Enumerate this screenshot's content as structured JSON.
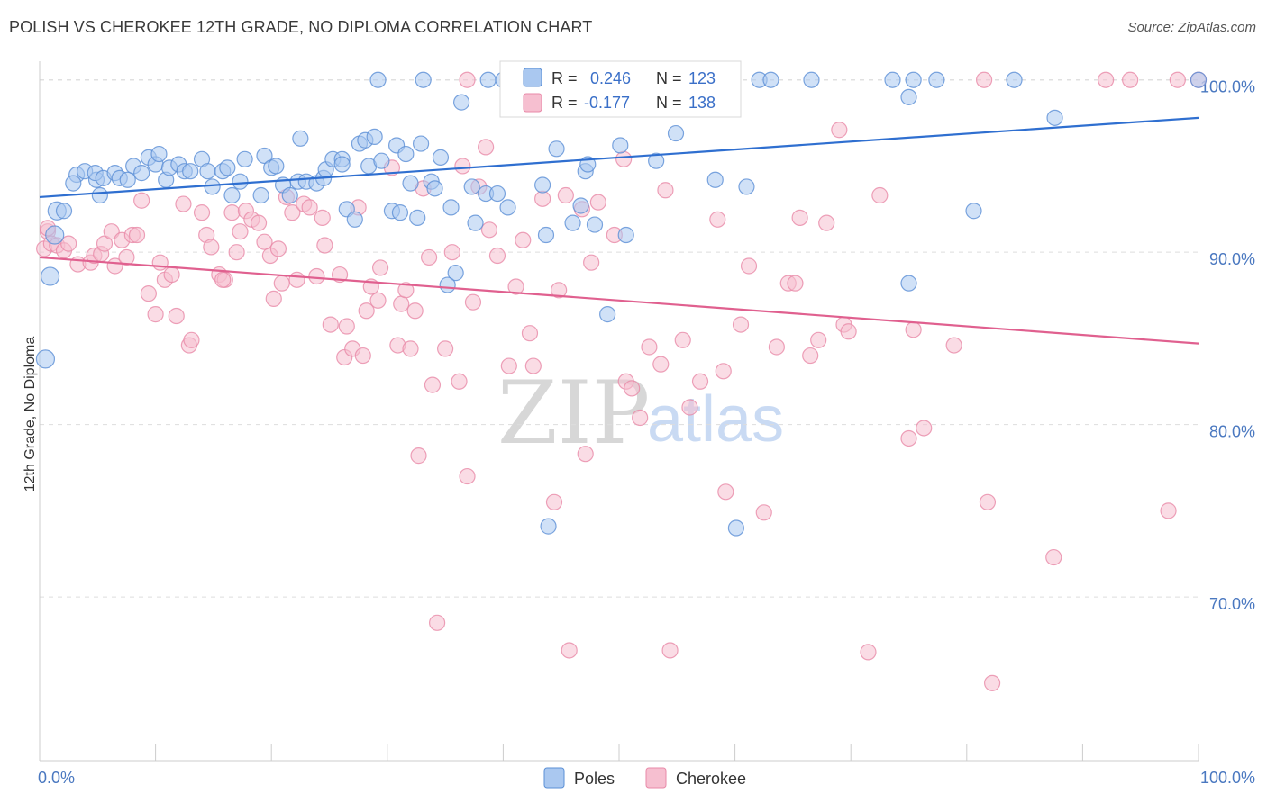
{
  "title": "POLISH VS CHEROKEE 12TH GRADE, NO DIPLOMA CORRELATION CHART",
  "source": "Source: ZipAtlas.com",
  "watermark": {
    "zip": "ZIP",
    "atlas": "atlas"
  },
  "colors": {
    "poles_fill": "#aac8f0",
    "poles_stroke": "#5b8fd6",
    "poles_line": "#2f6fd0",
    "cherokee_fill": "#f6bfd0",
    "cherokee_stroke": "#e889a8",
    "cherokee_line": "#e0608f",
    "tick_label": "#4a78c0",
    "grid": "#dddddd"
  },
  "legend_box": {
    "rows": [
      {
        "r_label": "R = ",
        "r_value": "0.246",
        "n_label": "N = ",
        "n_value": "123",
        "series": "poles"
      },
      {
        "r_label": "R = ",
        "r_value": "-0.177",
        "n_label": "N = ",
        "n_value": "138",
        "series": "cherokee"
      }
    ]
  },
  "chart_data": {
    "type": "scatter",
    "title": "POLISH VS CHEROKEE 12TH GRADE, NO DIPLOMA CORRELATION CHART",
    "xlabel": "",
    "ylabel": "12th Grade, No Diploma",
    "xlim": [
      0,
      100
    ],
    "ylim": [
      60.5,
      101.5
    ],
    "x_tick_labels": [
      "0.0%",
      "100.0%"
    ],
    "y_ticks": [
      70,
      80,
      90,
      100
    ],
    "y_tick_labels": [
      "70.0%",
      "80.0%",
      "90.0%",
      "100.0%"
    ],
    "grid": "horizontal dashed",
    "legend_position": "bottom-center",
    "series": [
      {
        "name": "Poles",
        "r": 0.246,
        "n": 123,
        "trend": {
          "x": [
            0,
            100
          ],
          "y": [
            93.2,
            97.8
          ]
        },
        "points": [
          [
            0.9,
            88.6
          ],
          [
            0.5,
            83.8
          ],
          [
            1.5,
            92.4
          ],
          [
            2.1,
            92.4
          ],
          [
            1.3,
            91.0
          ],
          [
            3.2,
            94.5
          ],
          [
            2.9,
            94.0
          ],
          [
            3.9,
            94.7
          ],
          [
            4.9,
            94.2
          ],
          [
            4.8,
            94.6
          ],
          [
            5.2,
            93.3
          ],
          [
            5.5,
            94.3
          ],
          [
            6.5,
            94.6
          ],
          [
            6.9,
            94.3
          ],
          [
            7.6,
            94.2
          ],
          [
            8.1,
            95.0
          ],
          [
            8.8,
            94.6
          ],
          [
            9.4,
            95.5
          ],
          [
            10.0,
            95.1
          ],
          [
            10.3,
            95.7
          ],
          [
            10.9,
            94.2
          ],
          [
            11.2,
            94.9
          ],
          [
            12.0,
            95.1
          ],
          [
            12.5,
            94.7
          ],
          [
            13.0,
            94.7
          ],
          [
            14.0,
            95.4
          ],
          [
            14.5,
            94.7
          ],
          [
            14.9,
            93.8
          ],
          [
            15.8,
            94.7
          ],
          [
            16.2,
            94.9
          ],
          [
            16.6,
            93.3
          ],
          [
            17.3,
            94.1
          ],
          [
            17.7,
            95.4
          ],
          [
            19.1,
            93.3
          ],
          [
            19.4,
            95.6
          ],
          [
            20.0,
            94.9
          ],
          [
            20.4,
            95.0
          ],
          [
            21.0,
            93.9
          ],
          [
            21.6,
            93.3
          ],
          [
            22.3,
            94.1
          ],
          [
            23.0,
            94.1
          ],
          [
            22.5,
            96.6
          ],
          [
            23.9,
            94.0
          ],
          [
            24.5,
            94.3
          ],
          [
            24.7,
            94.8
          ],
          [
            25.3,
            95.4
          ],
          [
            26.1,
            95.4
          ],
          [
            26.5,
            92.5
          ],
          [
            26.1,
            95.1
          ],
          [
            27.2,
            91.9
          ],
          [
            27.6,
            96.3
          ],
          [
            28.1,
            96.5
          ],
          [
            28.9,
            96.7
          ],
          [
            28.4,
            95.0
          ],
          [
            29.5,
            95.3
          ],
          [
            30.4,
            92.4
          ],
          [
            31.1,
            92.3
          ],
          [
            30.8,
            96.2
          ],
          [
            32.0,
            94.0
          ],
          [
            31.6,
            95.7
          ],
          [
            32.6,
            92.0
          ],
          [
            32.9,
            96.3
          ],
          [
            33.8,
            94.1
          ],
          [
            34.1,
            93.7
          ],
          [
            34.6,
            95.5
          ],
          [
            35.5,
            92.6
          ],
          [
            35.9,
            88.8
          ],
          [
            35.2,
            88.1
          ],
          [
            36.4,
            98.7
          ],
          [
            37.3,
            93.8
          ],
          [
            37.6,
            91.7
          ],
          [
            38.5,
            93.4
          ],
          [
            39.5,
            93.4
          ],
          [
            40.4,
            92.6
          ],
          [
            38.7,
            100.0
          ],
          [
            41.0,
            100.0
          ],
          [
            42.0,
            100.0
          ],
          [
            43.4,
            93.9
          ],
          [
            43.7,
            91.0
          ],
          [
            43.9,
            74.1
          ],
          [
            44.6,
            96.0
          ],
          [
            45.7,
            100.0
          ],
          [
            46.0,
            91.7
          ],
          [
            46.7,
            92.7
          ],
          [
            47.1,
            94.7
          ],
          [
            47.3,
            95.1
          ],
          [
            47.9,
            91.6
          ],
          [
            49.0,
            86.4
          ],
          [
            50.1,
            96.2
          ],
          [
            50.6,
            91.0
          ],
          [
            50.9,
            100.0
          ],
          [
            52.1,
            100.0
          ],
          [
            53.2,
            95.3
          ],
          [
            54.0,
            100.0
          ],
          [
            54.9,
            96.9
          ],
          [
            56.0,
            100.0
          ],
          [
            57.5,
            100.0
          ],
          [
            58.3,
            94.2
          ],
          [
            60.1,
            74.0
          ],
          [
            61.0,
            93.8
          ],
          [
            62.1,
            100.0
          ],
          [
            63.1,
            100.0
          ],
          [
            66.6,
            100.0
          ],
          [
            73.6,
            100.0
          ],
          [
            75.0,
            99.0
          ],
          [
            75.4,
            100.0
          ],
          [
            77.4,
            100.0
          ],
          [
            75.0,
            88.2
          ],
          [
            80.6,
            92.4
          ],
          [
            84.1,
            100.0
          ],
          [
            87.6,
            97.8
          ],
          [
            100.0,
            100.0
          ],
          [
            40.0,
            100.0
          ],
          [
            48.4,
            100.0
          ],
          [
            33.1,
            100.0
          ],
          [
            42.9,
            100.0
          ],
          [
            29.2,
            100.0
          ]
        ]
      },
      {
        "name": "Cherokee",
        "r": -0.177,
        "n": 138,
        "trend": {
          "x": [
            0,
            100
          ],
          "y": [
            89.7,
            84.7
          ]
        },
        "points": [
          [
            0.4,
            90.2
          ],
          [
            0.7,
            91.2
          ],
          [
            0.7,
            91.4
          ],
          [
            1.0,
            90.5
          ],
          [
            1.5,
            90.4
          ],
          [
            2.1,
            90.1
          ],
          [
            2.5,
            90.5
          ],
          [
            3.3,
            89.3
          ],
          [
            4.4,
            89.4
          ],
          [
            4.7,
            89.8
          ],
          [
            5.3,
            89.9
          ],
          [
            5.6,
            90.5
          ],
          [
            6.2,
            91.2
          ],
          [
            6.5,
            89.2
          ],
          [
            7.1,
            90.7
          ],
          [
            7.5,
            89.7
          ],
          [
            8.0,
            91.0
          ],
          [
            8.4,
            91.0
          ],
          [
            8.8,
            93.0
          ],
          [
            9.4,
            87.6
          ],
          [
            10.0,
            86.4
          ],
          [
            10.4,
            89.4
          ],
          [
            10.8,
            88.4
          ],
          [
            11.4,
            88.7
          ],
          [
            11.8,
            86.3
          ],
          [
            12.4,
            92.8
          ],
          [
            12.9,
            84.6
          ],
          [
            13.1,
            84.9
          ],
          [
            14.0,
            92.3
          ],
          [
            14.4,
            91.0
          ],
          [
            14.8,
            90.3
          ],
          [
            15.5,
            88.7
          ],
          [
            16.0,
            88.4
          ],
          [
            16.6,
            92.3
          ],
          [
            17.0,
            90.0
          ],
          [
            17.3,
            91.2
          ],
          [
            17.8,
            92.4
          ],
          [
            18.3,
            91.9
          ],
          [
            18.9,
            91.7
          ],
          [
            19.4,
            90.6
          ],
          [
            19.9,
            89.8
          ],
          [
            20.2,
            87.3
          ],
          [
            20.6,
            90.2
          ],
          [
            21.3,
            93.2
          ],
          [
            21.8,
            92.3
          ],
          [
            22.2,
            88.4
          ],
          [
            22.8,
            92.8
          ],
          [
            23.3,
            92.6
          ],
          [
            23.9,
            88.6
          ],
          [
            24.4,
            92.0
          ],
          [
            24.6,
            90.4
          ],
          [
            25.1,
            85.8
          ],
          [
            25.9,
            88.7
          ],
          [
            26.5,
            85.7
          ],
          [
            26.3,
            83.9
          ],
          [
            27.0,
            84.4
          ],
          [
            27.5,
            92.6
          ],
          [
            27.9,
            84.0
          ],
          [
            28.2,
            86.6
          ],
          [
            28.6,
            88.0
          ],
          [
            29.2,
            87.2
          ],
          [
            29.4,
            89.1
          ],
          [
            30.4,
            94.9
          ],
          [
            30.9,
            84.6
          ],
          [
            31.2,
            87.0
          ],
          [
            31.6,
            87.8
          ],
          [
            32.0,
            84.4
          ],
          [
            32.4,
            86.6
          ],
          [
            32.7,
            78.2
          ],
          [
            33.1,
            93.7
          ],
          [
            33.6,
            89.7
          ],
          [
            33.9,
            82.3
          ],
          [
            34.3,
            68.5
          ],
          [
            35.0,
            84.4
          ],
          [
            35.6,
            90.0
          ],
          [
            36.2,
            82.5
          ],
          [
            36.5,
            95.0
          ],
          [
            36.9,
            77.0
          ],
          [
            37.4,
            87.1
          ],
          [
            37.9,
            93.8
          ],
          [
            38.5,
            96.1
          ],
          [
            38.8,
            91.3
          ],
          [
            39.5,
            89.8
          ],
          [
            40.5,
            83.4
          ],
          [
            41.1,
            88.0
          ],
          [
            41.7,
            90.7
          ],
          [
            42.3,
            85.3
          ],
          [
            42.6,
            83.4
          ],
          [
            43.4,
            93.1
          ],
          [
            44.4,
            75.5
          ],
          [
            44.8,
            87.8
          ],
          [
            45.4,
            93.3
          ],
          [
            45.7,
            66.9
          ],
          [
            46.8,
            92.5
          ],
          [
            47.1,
            78.3
          ],
          [
            47.6,
            89.4
          ],
          [
            48.2,
            92.9
          ],
          [
            49.6,
            91.0
          ],
          [
            50.4,
            95.4
          ],
          [
            50.6,
            82.5
          ],
          [
            51.1,
            82.1
          ],
          [
            51.8,
            80.4
          ],
          [
            52.6,
            84.5
          ],
          [
            53.6,
            83.5
          ],
          [
            54.0,
            93.6
          ],
          [
            54.4,
            66.9
          ],
          [
            55.5,
            84.9
          ],
          [
            56.1,
            81.0
          ],
          [
            57.0,
            82.5
          ],
          [
            58.5,
            91.9
          ],
          [
            59.0,
            83.1
          ],
          [
            59.2,
            76.1
          ],
          [
            60.5,
            85.8
          ],
          [
            61.2,
            89.2
          ],
          [
            62.5,
            74.9
          ],
          [
            63.6,
            84.5
          ],
          [
            64.6,
            88.2
          ],
          [
            65.2,
            88.2
          ],
          [
            65.6,
            92.0
          ],
          [
            66.5,
            84.0
          ],
          [
            67.2,
            84.9
          ],
          [
            67.9,
            91.7
          ],
          [
            69.0,
            97.1
          ],
          [
            69.4,
            85.8
          ],
          [
            69.8,
            85.4
          ],
          [
            71.5,
            66.8
          ],
          [
            72.5,
            93.3
          ],
          [
            75.0,
            79.2
          ],
          [
            75.4,
            85.5
          ],
          [
            76.3,
            79.8
          ],
          [
            78.9,
            84.6
          ],
          [
            81.5,
            100.0
          ],
          [
            81.8,
            75.5
          ],
          [
            82.2,
            65.0
          ],
          [
            87.5,
            72.3
          ],
          [
            92.0,
            100.0
          ],
          [
            94.1,
            100.0
          ],
          [
            97.4,
            75.0
          ],
          [
            98.2,
            100.0
          ],
          [
            36.9,
            100.0
          ],
          [
            49.5,
            100.0
          ],
          [
            52.7,
            100.0
          ],
          [
            55.3,
            100.0
          ],
          [
            42.1,
            100.0
          ],
          [
            100.0,
            100.0
          ],
          [
            45.2,
            100.0
          ],
          [
            15.8,
            88.4
          ],
          [
            20.9,
            88.2
          ]
        ]
      }
    ]
  },
  "bottom_legend": [
    {
      "label": "Poles",
      "series": "poles"
    },
    {
      "label": "Cherokee",
      "series": "cherokee"
    }
  ]
}
